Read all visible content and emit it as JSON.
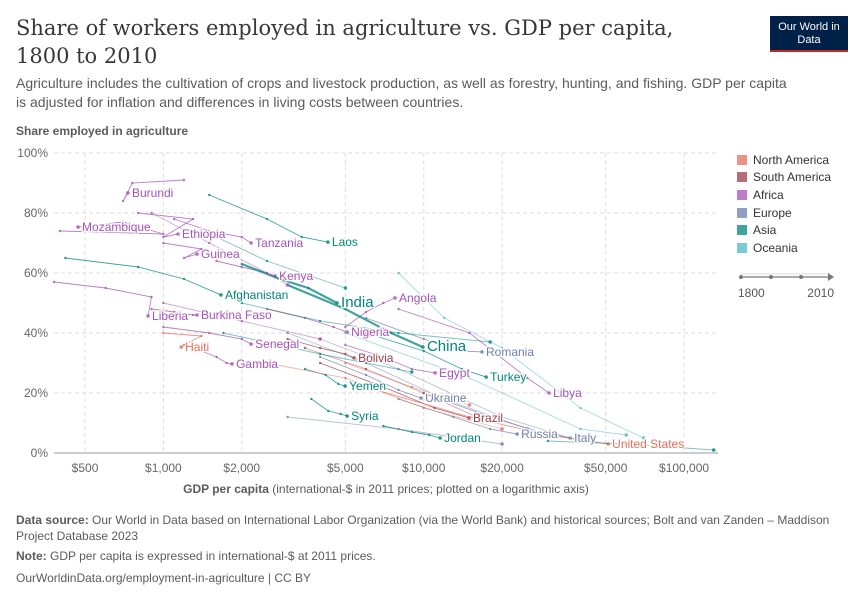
{
  "header": {
    "title": "Share of workers employed in agriculture vs. GDP per capita, 1800 to 2010",
    "subtitle": "Agriculture includes the cultivation of crops and livestock production, as well as forestry, hunting, and fishing. GDP per capita is adjusted for inflation and differences in living costs between countries.",
    "logo": "Our World in Data"
  },
  "footer": {
    "source_label": "Data source:",
    "source": "Our World in Data based on International Labor Organization (via the World Bank) and historical sources; Bolt and van Zanden – Maddison Project Database 2023",
    "note_label": "Note:",
    "note": "GDP per capita is expressed in international-$ at 2011 prices.",
    "url": "OurWorldinData.org/employment-in-agriculture | CC BY"
  },
  "timeline": {
    "start": "1800",
    "end": "2010"
  },
  "chart_data": {
    "type": "scatter",
    "ylabel": "Share employed in agriculture",
    "xlabel": "GDP per capita",
    "xlabel_note": "(international-$ in 2011 prices; plotted on a logarithmic axis)",
    "x_scale": "log",
    "xlim": [
      380,
      135000
    ],
    "ylim": [
      0,
      100
    ],
    "grid": true,
    "legend": "right",
    "x_ticks": [
      {
        "v": 500,
        "l": "$500"
      },
      {
        "v": 1000,
        "l": "$1,000"
      },
      {
        "v": 2000,
        "l": "$2,000"
      },
      {
        "v": 5000,
        "l": "$5,000"
      },
      {
        "v": 10000,
        "l": "$10,000"
      },
      {
        "v": 20000,
        "l": "$20,000"
      },
      {
        "v": 50000,
        "l": "$50,000"
      },
      {
        "v": 100000,
        "l": "$100,000"
      }
    ],
    "y_ticks": [
      {
        "v": 0,
        "l": "0%"
      },
      {
        "v": 20,
        "l": "20%"
      },
      {
        "v": 40,
        "l": "40%"
      },
      {
        "v": 60,
        "l": "60%"
      },
      {
        "v": 80,
        "l": "80%"
      },
      {
        "v": 100,
        "l": "100%"
      }
    ],
    "regions": [
      {
        "name": "North America",
        "color": "#e56e5a"
      },
      {
        "name": "South America",
        "color": "#9a3d4a"
      },
      {
        "name": "Africa",
        "color": "#a652ba"
      },
      {
        "name": "Europe",
        "color": "#6d7fb0"
      },
      {
        "name": "Asia",
        "color": "#00847e"
      },
      {
        "name": "Oceania",
        "color": "#4cb8c4"
      }
    ],
    "series": [
      {
        "name": "Burundi",
        "region": "Africa",
        "points": [
          [
            1200,
            91
          ],
          [
            760,
            90
          ],
          [
            700,
            84
          ],
          [
            731,
            86.7
          ]
        ]
      },
      {
        "name": "Mozambique",
        "region": "Africa",
        "points": [
          [
            400,
            74
          ],
          [
            1000,
            73
          ],
          [
            700,
            77
          ],
          [
            470,
            75.3
          ]
        ]
      },
      {
        "name": "Ethiopia",
        "region": "Africa",
        "points": [
          [
            800,
            80
          ],
          [
            1300,
            78
          ],
          [
            1000,
            72
          ],
          [
            1138,
            73
          ]
        ]
      },
      {
        "name": "Tanzania",
        "region": "Africa",
        "points": [
          [
            1100,
            78
          ],
          [
            1500,
            74
          ],
          [
            2000,
            72
          ],
          [
            2173,
            70
          ]
        ]
      },
      {
        "name": "Laos",
        "region": "Asia",
        "points": [
          [
            1500,
            86
          ],
          [
            2500,
            78
          ],
          [
            3400,
            72
          ],
          [
            4285,
            70.3
          ]
        ]
      },
      {
        "name": "Guinea",
        "region": "Africa",
        "points": [
          [
            1000,
            70
          ],
          [
            1400,
            68
          ],
          [
            1200,
            65
          ],
          [
            1346,
            66.3
          ]
        ]
      },
      {
        "name": "Kenya",
        "region": "Africa",
        "points": [
          [
            1600,
            64
          ],
          [
            2000,
            62
          ],
          [
            2500,
            60
          ],
          [
            2686,
            59
          ]
        ]
      },
      {
        "name": "Afghanistan",
        "region": "Asia",
        "points": [
          [
            420,
            65
          ],
          [
            800,
            62
          ],
          [
            1200,
            58
          ],
          [
            1664,
            52.7
          ]
        ]
      },
      {
        "name": "India",
        "region": "Asia",
        "bold": true,
        "points": [
          [
            2000,
            63
          ],
          [
            2800,
            58
          ],
          [
            3600,
            55
          ],
          [
            4645,
            50
          ]
        ]
      },
      {
        "name": "Angola",
        "region": "Africa",
        "points": [
          [
            5000,
            42
          ],
          [
            6000,
            47
          ],
          [
            7000,
            50
          ],
          [
            7760,
            51.7
          ]
        ]
      },
      {
        "name": "Liberia",
        "region": "Africa",
        "points": [
          [
            380,
            57
          ],
          [
            600,
            55
          ],
          [
            900,
            52
          ],
          [
            873,
            45.7
          ]
        ]
      },
      {
        "name": "Burkina Faso",
        "region": "Africa",
        "points": [
          [
            900,
            48
          ],
          [
            1100,
            47
          ],
          [
            1300,
            46
          ],
          [
            1346,
            46
          ]
        ]
      },
      {
        "name": "Nigeria",
        "region": "Africa",
        "points": [
          [
            2500,
            48
          ],
          [
            3500,
            45
          ],
          [
            4500,
            42
          ],
          [
            5080,
            40.3
          ]
        ]
      },
      {
        "name": "Haiti",
        "region": "North America",
        "points": [
          [
            1000,
            40
          ],
          [
            1400,
            39
          ],
          [
            1200,
            36
          ],
          [
            1170,
            35.3
          ]
        ]
      },
      {
        "name": "Senegal",
        "region": "Africa",
        "points": [
          [
            1000,
            42
          ],
          [
            1500,
            40
          ],
          [
            2000,
            38
          ],
          [
            2173,
            36.3
          ]
        ]
      },
      {
        "name": "China",
        "region": "Asia",
        "bold": true,
        "points": [
          [
            3000,
            56
          ],
          [
            5000,
            48
          ],
          [
            7500,
            40
          ],
          [
            9930,
            35.3
          ]
        ]
      },
      {
        "name": "Romania",
        "region": "Europe",
        "points": [
          [
            6000,
            45
          ],
          [
            10000,
            38
          ],
          [
            14000,
            34
          ],
          [
            16740,
            33.7
          ]
        ]
      },
      {
        "name": "Bolivia",
        "region": "South America",
        "points": [
          [
            3000,
            38
          ],
          [
            4000,
            35
          ],
          [
            5000,
            33
          ],
          [
            5400,
            31.7
          ]
        ]
      },
      {
        "name": "Gambia",
        "region": "Africa",
        "points": [
          [
            1400,
            34
          ],
          [
            1600,
            32
          ],
          [
            1750,
            30
          ],
          [
            1836,
            29.7
          ]
        ]
      },
      {
        "name": "Egypt",
        "region": "Africa",
        "points": [
          [
            5000,
            36
          ],
          [
            7000,
            32
          ],
          [
            9000,
            28
          ],
          [
            11060,
            26.7
          ]
        ]
      },
      {
        "name": "Turkey",
        "region": "Asia",
        "points": [
          [
            6000,
            40
          ],
          [
            10000,
            34
          ],
          [
            14000,
            28
          ],
          [
            17370,
            25.3
          ]
        ]
      },
      {
        "name": "Yemen",
        "region": "Asia",
        "points": [
          [
            3500,
            28
          ],
          [
            4200,
            26
          ],
          [
            4700,
            23
          ],
          [
            4990,
            22.3
          ]
        ]
      },
      {
        "name": "Libya",
        "region": "Africa",
        "points": [
          [
            8000,
            48
          ],
          [
            15000,
            40
          ],
          [
            25000,
            25
          ],
          [
            30300,
            20
          ]
        ]
      },
      {
        "name": "Ukraine",
        "region": "Europe",
        "points": [
          [
            4000,
            32
          ],
          [
            6000,
            26
          ],
          [
            8000,
            21
          ],
          [
            9770,
            18.3
          ]
        ]
      },
      {
        "name": "Syria",
        "region": "Asia",
        "points": [
          [
            3700,
            18
          ],
          [
            4300,
            14
          ],
          [
            4800,
            13
          ],
          [
            5080,
            12.3
          ]
        ]
      },
      {
        "name": "Brazil",
        "region": "South America",
        "points": [
          [
            4000,
            30
          ],
          [
            7000,
            22
          ],
          [
            11000,
            15
          ],
          [
            14930,
            11.7
          ]
        ]
      },
      {
        "name": "Jordan",
        "region": "Asia",
        "points": [
          [
            7000,
            9
          ],
          [
            9000,
            7
          ],
          [
            10500,
            6
          ],
          [
            11560,
            5
          ]
        ]
      },
      {
        "name": "Russia",
        "region": "Europe",
        "points": [
          [
            8000,
            18
          ],
          [
            13000,
            12
          ],
          [
            18000,
            8
          ],
          [
            22850,
            6.3
          ]
        ]
      },
      {
        "name": "Italy",
        "region": "Europe",
        "points": [
          [
            10000,
            20
          ],
          [
            18000,
            12
          ],
          [
            28000,
            7
          ],
          [
            36500,
            5
          ]
        ]
      },
      {
        "name": "United States",
        "region": "North America",
        "points": [
          [
            6000,
            22
          ],
          [
            15000,
            12
          ],
          [
            30000,
            6
          ],
          [
            51100,
            3
          ]
        ]
      },
      {
        "region": "Asia",
        "points": [
          [
            1600,
            72
          ],
          [
            2500,
            64
          ],
          [
            5000,
            55
          ]
        ]
      },
      {
        "region": "Africa",
        "points": [
          [
            900,
            80
          ],
          [
            1500,
            70
          ],
          [
            2500,
            60
          ],
          [
            3000,
            56
          ]
        ]
      },
      {
        "region": "Europe",
        "points": [
          [
            3000,
            40
          ],
          [
            6000,
            30
          ],
          [
            12000,
            18
          ],
          [
            25000,
            8
          ]
        ]
      },
      {
        "region": "Europe",
        "points": [
          [
            4000,
            38
          ],
          [
            8000,
            28
          ],
          [
            20000,
            12
          ],
          [
            40000,
            4
          ]
        ]
      },
      {
        "region": "Oceania",
        "points": [
          [
            8000,
            60
          ],
          [
            12000,
            45
          ],
          [
            20000,
            35
          ],
          [
            40000,
            15
          ],
          [
            70000,
            5
          ]
        ]
      },
      {
        "region": "Asia",
        "points": [
          [
            30000,
            4
          ],
          [
            60000,
            3
          ],
          [
            130000,
            1
          ]
        ]
      },
      {
        "region": "North America",
        "points": [
          [
            2500,
            30
          ],
          [
            5000,
            25
          ],
          [
            10000,
            15
          ],
          [
            20000,
            8
          ]
        ]
      },
      {
        "region": "South America",
        "points": [
          [
            3500,
            35
          ],
          [
            6000,
            28
          ],
          [
            10000,
            20
          ],
          [
            16000,
            12
          ]
        ]
      },
      {
        "region": "Africa",
        "points": [
          [
            1000,
            50
          ],
          [
            2000,
            44
          ],
          [
            4000,
            38
          ]
        ]
      },
      {
        "region": "Asia",
        "points": [
          [
            2000,
            50
          ],
          [
            4000,
            44
          ],
          [
            8000,
            40
          ],
          [
            18000,
            37
          ]
        ]
      },
      {
        "region": "Europe",
        "points": [
          [
            3000,
            12
          ],
          [
            8000,
            8
          ],
          [
            20000,
            3
          ]
        ]
      },
      {
        "region": "Oceania",
        "points": [
          [
            5000,
            40
          ],
          [
            15000,
            25
          ],
          [
            40000,
            8
          ],
          [
            60000,
            6
          ]
        ]
      },
      {
        "region": "Asia",
        "points": [
          [
            1700,
            40
          ],
          [
            4000,
            33
          ],
          [
            9000,
            27
          ]
        ]
      },
      {
        "region": "North America",
        "points": [
          [
            5000,
            30
          ],
          [
            9000,
            22
          ],
          [
            15000,
            16
          ]
        ]
      }
    ]
  }
}
